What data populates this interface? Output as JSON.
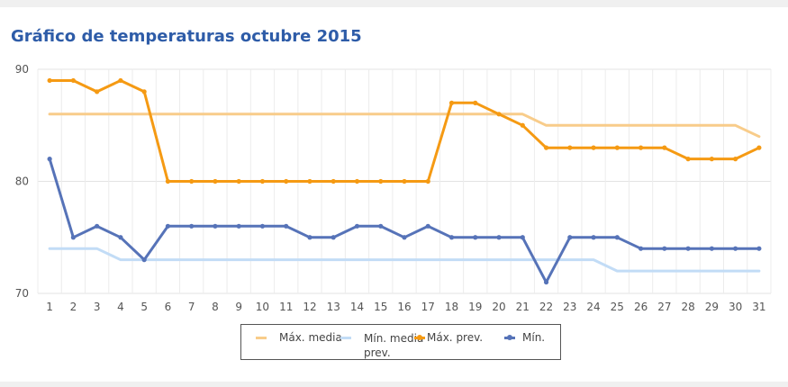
{
  "title": "Gráfico de temperaturas octubre 2015",
  "chart_data": {
    "type": "line",
    "title": "Gráfico de temperaturas octubre 2015",
    "xlabel": "",
    "ylabel": "",
    "x": [
      1,
      2,
      3,
      4,
      5,
      6,
      7,
      8,
      9,
      10,
      11,
      12,
      13,
      14,
      15,
      16,
      17,
      18,
      19,
      20,
      21,
      22,
      23,
      24,
      25,
      26,
      27,
      28,
      29,
      30,
      31
    ],
    "ylim": [
      70,
      90
    ],
    "yticks": [
      70,
      80,
      90
    ],
    "grid": true,
    "legend_position": "bottom",
    "series": [
      {
        "name": "Máx. media",
        "color": "#f8cc8a",
        "markers": false,
        "values": [
          86,
          86,
          86,
          86,
          86,
          86,
          86,
          86,
          86,
          86,
          86,
          86,
          86,
          86,
          86,
          86,
          86,
          86,
          86,
          86,
          86,
          85,
          85,
          85,
          85,
          85,
          85,
          85,
          85,
          85,
          84
        ]
      },
      {
        "name": "Mín. media prev.",
        "color": "#c2dcf6",
        "markers": false,
        "values": [
          74,
          74,
          74,
          73,
          73,
          73,
          73,
          73,
          73,
          73,
          73,
          73,
          73,
          73,
          73,
          73,
          73,
          73,
          73,
          73,
          73,
          73,
          73,
          73,
          72,
          72,
          72,
          72,
          72,
          72,
          72
        ]
      },
      {
        "name": "Máx. prev.",
        "color": "#f59a13",
        "markers": true,
        "values": [
          89,
          89,
          88,
          89,
          88,
          80,
          80,
          80,
          80,
          80,
          80,
          80,
          80,
          80,
          80,
          80,
          80,
          87,
          87,
          86,
          85,
          83,
          83,
          83,
          83,
          83,
          83,
          82,
          82,
          82,
          83
        ]
      },
      {
        "name": "Mín.",
        "color": "#5673b8",
        "markers": true,
        "values": [
          82,
          75,
          76,
          75,
          73,
          76,
          76,
          76,
          76,
          76,
          76,
          75,
          75,
          76,
          76,
          75,
          76,
          75,
          75,
          75,
          75,
          71,
          75,
          75,
          75,
          74,
          74,
          74,
          74,
          74,
          74
        ]
      }
    ]
  }
}
